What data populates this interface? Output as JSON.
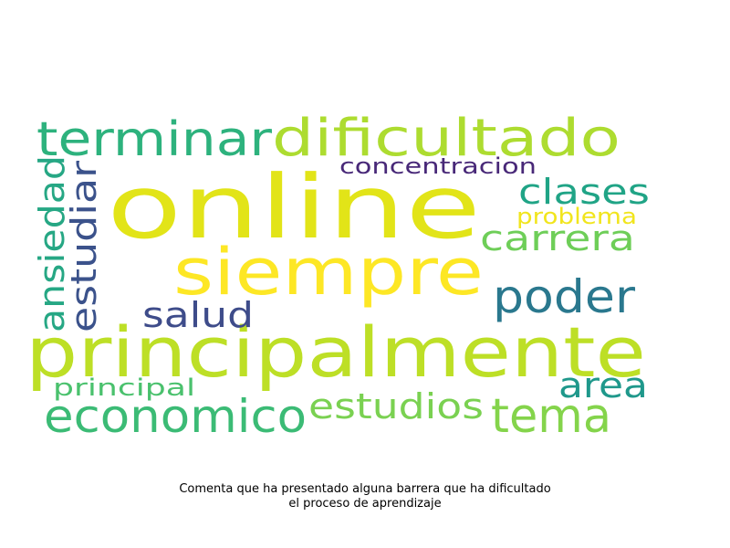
{
  "words": [
    {
      "text": "online",
      "color": "#e2e418"
    },
    {
      "text": "principalmente",
      "color": "#bddf26"
    },
    {
      "text": "siempre",
      "color": "#fde725"
    },
    {
      "text": "dificultado",
      "color": "#addc30"
    },
    {
      "text": "terminar",
      "color": "#2db27d"
    },
    {
      "text": "poder",
      "color": "#2a788e"
    },
    {
      "text": "economico",
      "color": "#3bbb75"
    },
    {
      "text": "tema",
      "color": "#84d44b"
    },
    {
      "text": "estudios",
      "color": "#7ad151"
    },
    {
      "text": "clases",
      "color": "#20a486"
    },
    {
      "text": "carrera",
      "color": "#6ece58"
    },
    {
      "text": "area",
      "color": "#1f988b"
    },
    {
      "text": "salud",
      "color": "#3e4c8a"
    },
    {
      "text": "concentracion",
      "color": "#482878"
    },
    {
      "text": "problema",
      "color": "#f1e51d"
    },
    {
      "text": "principal",
      "color": "#4ac16d"
    },
    {
      "text": "ansiedad",
      "color": "#26a784"
    },
    {
      "text": "estudiar",
      "color": "#3b528b"
    }
  ],
  "caption": {
    "line1": "Comenta que ha presentado alguna barrera que ha dificultado",
    "line2": "el proceso de aprendizaje"
  }
}
